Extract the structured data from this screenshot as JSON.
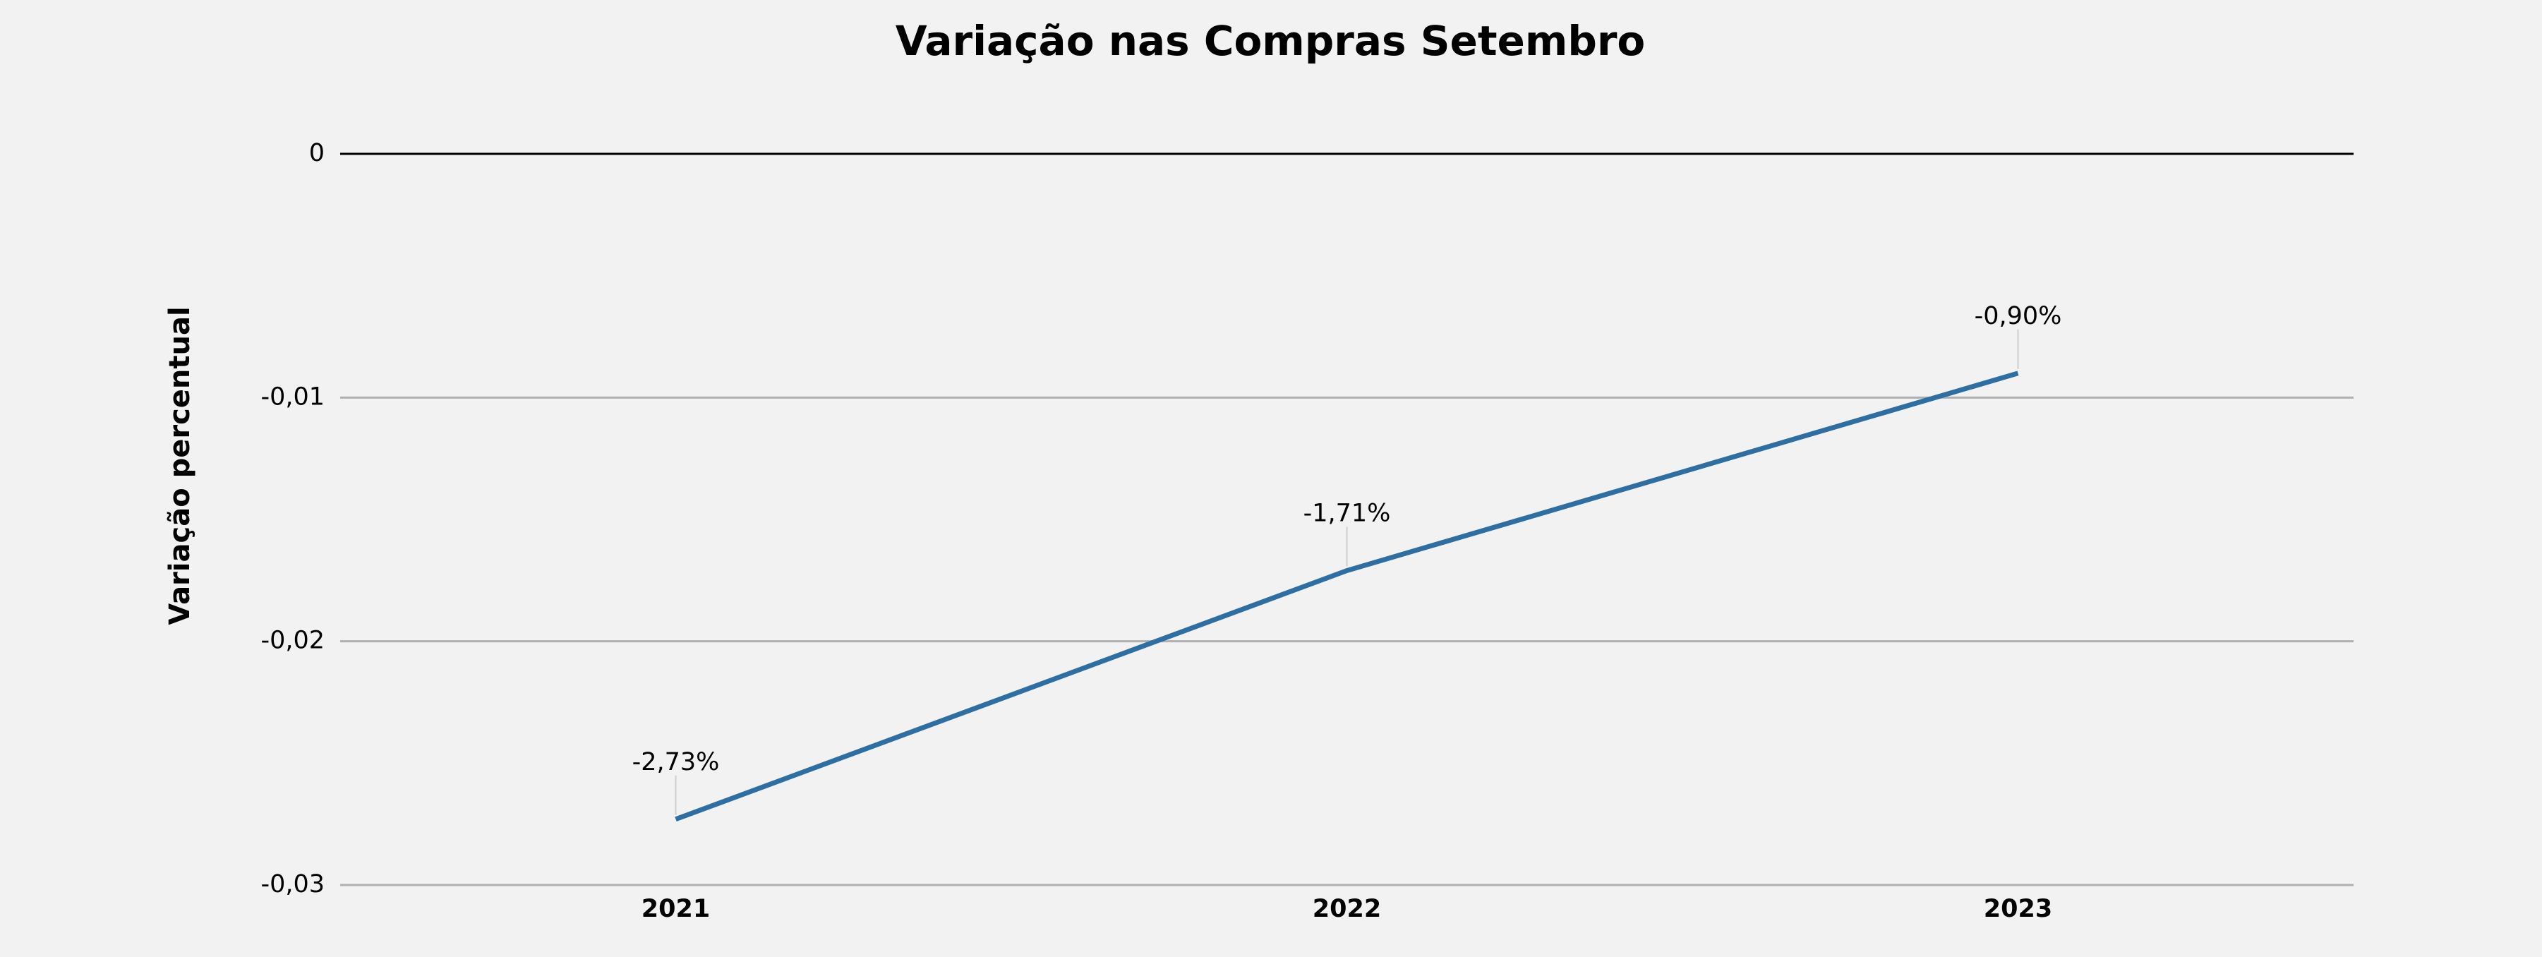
{
  "chart_data": {
    "type": "line",
    "title": "Variação nas Compras Setembro",
    "y_label": "Variação percentual",
    "categories": [
      "2021",
      "2022",
      "2023"
    ],
    "series": [
      {
        "name": "Variação",
        "color": "#2e6fa3",
        "values": [
          -0.0273,
          -0.0171,
          -0.009
        ],
        "value_labels": [
          "-2,73%",
          "-1,71%",
          "-0,90%"
        ]
      }
    ],
    "ylim": [
      -0.03,
      0
    ],
    "yticks": [
      0,
      {
        "value": -0.01,
        "label": "-0,01"
      },
      {
        "value": -0.02,
        "label": "-0,02"
      },
      {
        "value": -0.03,
        "label": "-0,03"
      }
    ],
    "grid": true
  }
}
